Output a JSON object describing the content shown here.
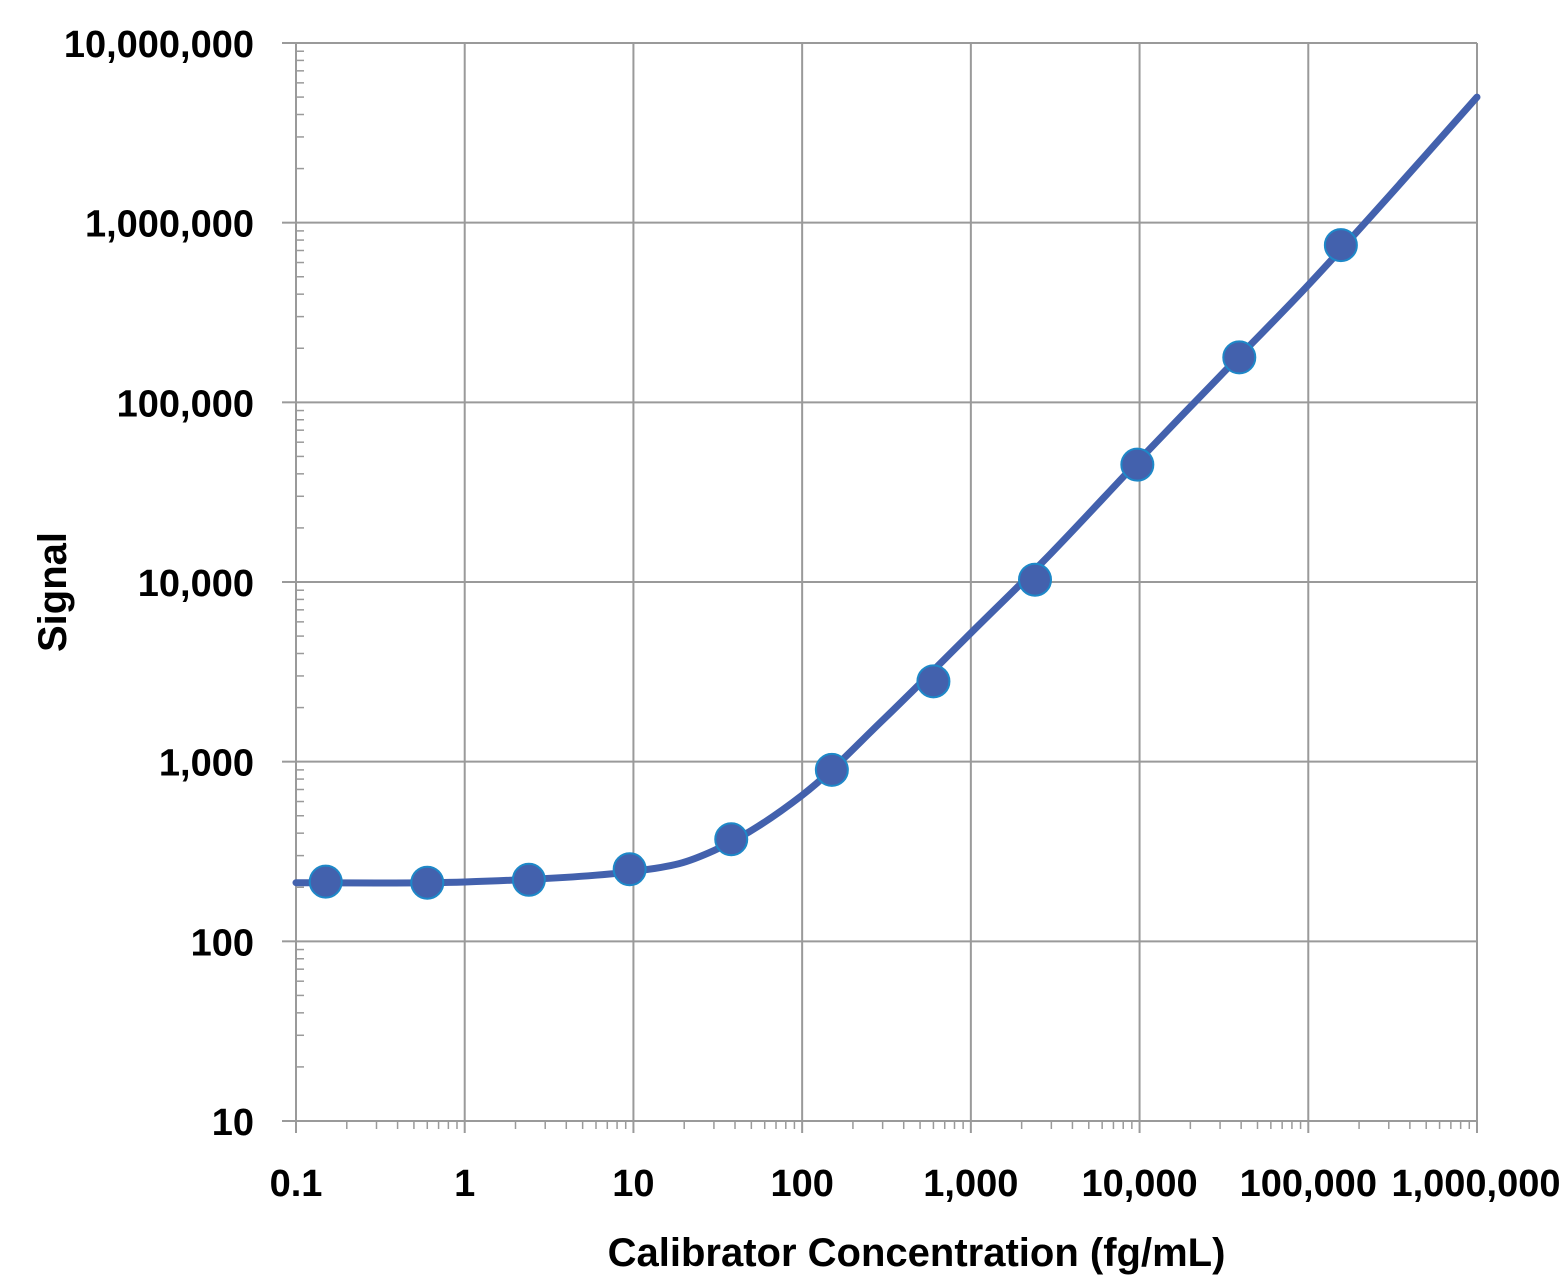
{
  "chart_data": {
    "type": "scatter",
    "xlabel": "Calibrator Concentration (fg/mL)",
    "ylabel": "Signal",
    "xscale": "log",
    "yscale": "log",
    "xlim": [
      0.1,
      1000000
    ],
    "ylim": [
      10,
      10000000
    ],
    "grid": true,
    "x_ticks": [
      0.1,
      1,
      10,
      100,
      1000,
      10000,
      100000,
      1000000
    ],
    "x_tick_labels": [
      "0.1",
      "1",
      "10",
      "100",
      "1,000",
      "10,000",
      "100,000",
      "1,000,000"
    ],
    "y_ticks": [
      10,
      100,
      1000,
      10000,
      100000,
      1000000,
      10000000
    ],
    "y_tick_labels": [
      "10",
      "100",
      "1,000",
      "10,000",
      "100,000",
      "1,000,000",
      "10,000,000"
    ],
    "series": [
      {
        "color": "#4361ad",
        "marker_edge": "#1e88c8",
        "points": {
          "x": [
            0.15,
            0.6,
            2.4,
            9.5,
            38,
            150,
            600,
            2400,
            9700,
            39000,
            156000
          ],
          "y": [
            215,
            212,
            220,
            252,
            370,
            900,
            2800,
            10300,
            45000,
            178000,
            750000
          ]
        },
        "fit_curve": {
          "x": [
            0.1,
            1,
            10,
            30,
            100,
            300,
            1000,
            3000,
            10000,
            30000,
            100000,
            300000,
            1000000
          ],
          "y": [
            212,
            214,
            245,
            320,
            650,
            1700,
            5200,
            14500,
            48000,
            140000,
            450000,
            1400000,
            5000000
          ]
        }
      }
    ]
  }
}
